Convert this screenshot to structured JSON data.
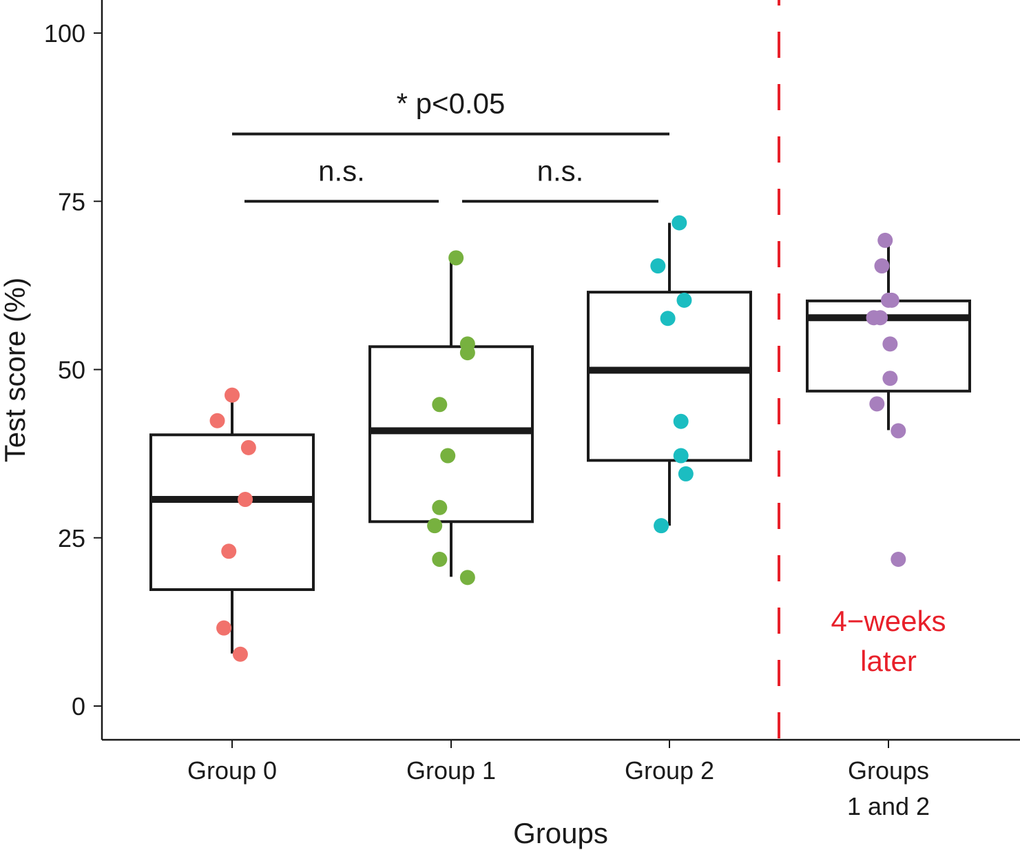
{
  "chart_data": {
    "type": "boxplot",
    "title": "",
    "xlabel": "Groups",
    "ylabel": "Test score (%)",
    "ylim": [
      -5,
      105
    ],
    "yticks": [
      0,
      25,
      50,
      75,
      100
    ],
    "ytick_labels": [
      "0",
      "25",
      "50",
      "75",
      "100"
    ],
    "grid": false,
    "legend": "none",
    "categories": [
      "Group 0",
      "Group 1",
      "Group 2",
      "Groups\n1 and 2"
    ],
    "category_label_lines": [
      [
        "Group 0"
      ],
      [
        "Group 1"
      ],
      [
        "Group 2"
      ],
      [
        "Groups",
        "1 and 2"
      ]
    ],
    "series": [
      {
        "name": "Group 0",
        "color": "#f1726c",
        "box": {
          "whisker_low": 7.8,
          "q1": 17.3,
          "median": 30.7,
          "q3": 40.3,
          "whisker_high": 45.2
        },
        "points": [
          {
            "jitter": 0.0,
            "y": 46.2
          },
          {
            "jitter": -0.09,
            "y": 42.4
          },
          {
            "jitter": 0.1,
            "y": 38.4
          },
          {
            "jitter": 0.08,
            "y": 30.7
          },
          {
            "jitter": -0.02,
            "y": 23.0
          },
          {
            "jitter": -0.05,
            "y": 11.6
          },
          {
            "jitter": 0.05,
            "y": 7.7
          }
        ]
      },
      {
        "name": "Group 1",
        "color": "#77b13f",
        "box": {
          "whisker_low": 19.2,
          "q1": 27.4,
          "median": 40.9,
          "q3": 53.4,
          "whisker_high": 66.6
        },
        "points": [
          {
            "jitter": 0.03,
            "y": 66.6
          },
          {
            "jitter": 0.1,
            "y": 53.8
          },
          {
            "jitter": 0.1,
            "y": 52.5
          },
          {
            "jitter": -0.07,
            "y": 44.8
          },
          {
            "jitter": -0.02,
            "y": 37.2
          },
          {
            "jitter": -0.07,
            "y": 29.5
          },
          {
            "jitter": -0.1,
            "y": 26.8
          },
          {
            "jitter": -0.07,
            "y": 21.8
          },
          {
            "jitter": 0.1,
            "y": 19.1
          }
        ]
      },
      {
        "name": "Group 2",
        "color": "#1bbdc1",
        "box": {
          "whisker_low": 26.8,
          "q1": 36.5,
          "median": 49.9,
          "q3": 61.5,
          "whisker_high": 71.8
        },
        "points": [
          {
            "jitter": 0.06,
            "y": 71.8
          },
          {
            "jitter": -0.07,
            "y": 65.4
          },
          {
            "jitter": 0.09,
            "y": 60.3
          },
          {
            "jitter": -0.01,
            "y": 57.6
          },
          {
            "jitter": 0.07,
            "y": 42.3
          },
          {
            "jitter": 0.07,
            "y": 37.2
          },
          {
            "jitter": 0.1,
            "y": 34.5
          },
          {
            "jitter": -0.05,
            "y": 26.8
          }
        ]
      },
      {
        "name": "Groups 1 and 2",
        "color": "#a77fbd",
        "box": {
          "whisker_low": 41.0,
          "q1": 46.8,
          "median": 57.7,
          "q3": 60.2,
          "whisker_high": 69.2
        },
        "points": [
          {
            "jitter": -0.02,
            "y": 69.2
          },
          {
            "jitter": -0.04,
            "y": 65.4
          },
          {
            "jitter": 0.0,
            "y": 60.3
          },
          {
            "jitter": 0.02,
            "y": 60.3
          },
          {
            "jitter": -0.09,
            "y": 57.7
          },
          {
            "jitter": -0.05,
            "y": 57.7
          },
          {
            "jitter": 0.01,
            "y": 53.8
          },
          {
            "jitter": 0.01,
            "y": 48.7
          },
          {
            "jitter": -0.07,
            "y": 44.9
          },
          {
            "jitter": 0.06,
            "y": 40.9
          },
          {
            "jitter": 0.06,
            "y": 21.8
          }
        ]
      }
    ],
    "comparisons": [
      {
        "from": 0,
        "to": 1,
        "y": 75,
        "label": "n.s."
      },
      {
        "from": 1,
        "to": 2,
        "y": 75,
        "label": "n.s."
      },
      {
        "from": 0,
        "to": 2,
        "y": 85,
        "label": "* p<0.05"
      }
    ],
    "separator": {
      "between": [
        2,
        3
      ],
      "color": "#e8202a",
      "style": "dashed"
    },
    "annotations": [
      {
        "text_lines": [
          "4−weeks",
          "later"
        ],
        "category": 3,
        "y": 11,
        "color": "#e8202a"
      }
    ]
  }
}
